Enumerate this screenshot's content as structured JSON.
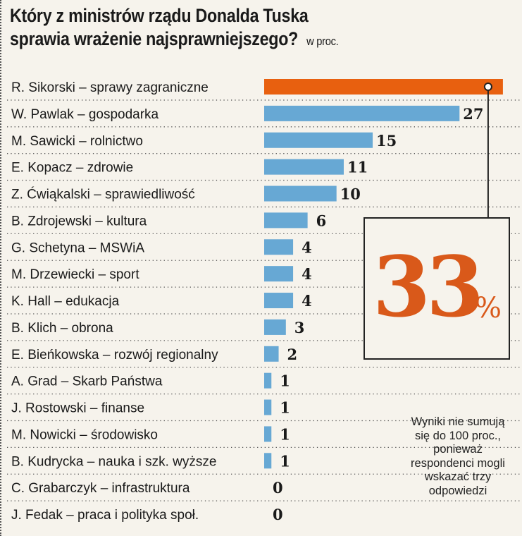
{
  "chart_data": {
    "type": "bar",
    "orientation": "horizontal",
    "title": "Który z ministrów rządu Donalda Tuska sprawia wrażenie najsprawniejszego?",
    "unit": "w proc.",
    "categories": [
      "R. Sikorski – sprawy zagraniczne",
      "W. Pawlak – gospodarka",
      "M. Sawicki – rolnictwo",
      "E. Kopacz – zdrowie",
      "Z. Ćwiąkalski – sprawiedliwość",
      "B. Zdrojewski – kultura",
      "G. Schetyna – MSWiA",
      "M. Drzewiecki – sport",
      "K. Hall – edukacja",
      "B. Klich – obrona",
      "E. Bieńkowska – rozwój regionalny",
      "A. Grad – Skarb Państwa",
      "J. Rostowski – finanse",
      "M. Nowicki – środowisko",
      "B. Kudrycka – nauka i szk. wyższe",
      "C. Grabarczyk – infrastruktura",
      "J. Fedak – praca i polityka społ."
    ],
    "values": [
      33,
      27,
      15,
      11,
      10,
      6,
      4,
      4,
      4,
      3,
      2,
      1,
      1,
      1,
      1,
      0,
      0
    ],
    "highlight": {
      "index": 0,
      "label": "33",
      "suffix": "%"
    },
    "xlim": [
      0,
      33
    ],
    "grid": "dotted row separators",
    "colors": {
      "highlight": "#e8600f",
      "bar": "#67a8d4",
      "callout": "#d9591a"
    },
    "note": [
      "Wyniki nie sumują",
      "się do 100 proc.,",
      "ponieważ",
      "respondenci mogli",
      "wskazać trzy",
      "odpowiedzi"
    ]
  }
}
